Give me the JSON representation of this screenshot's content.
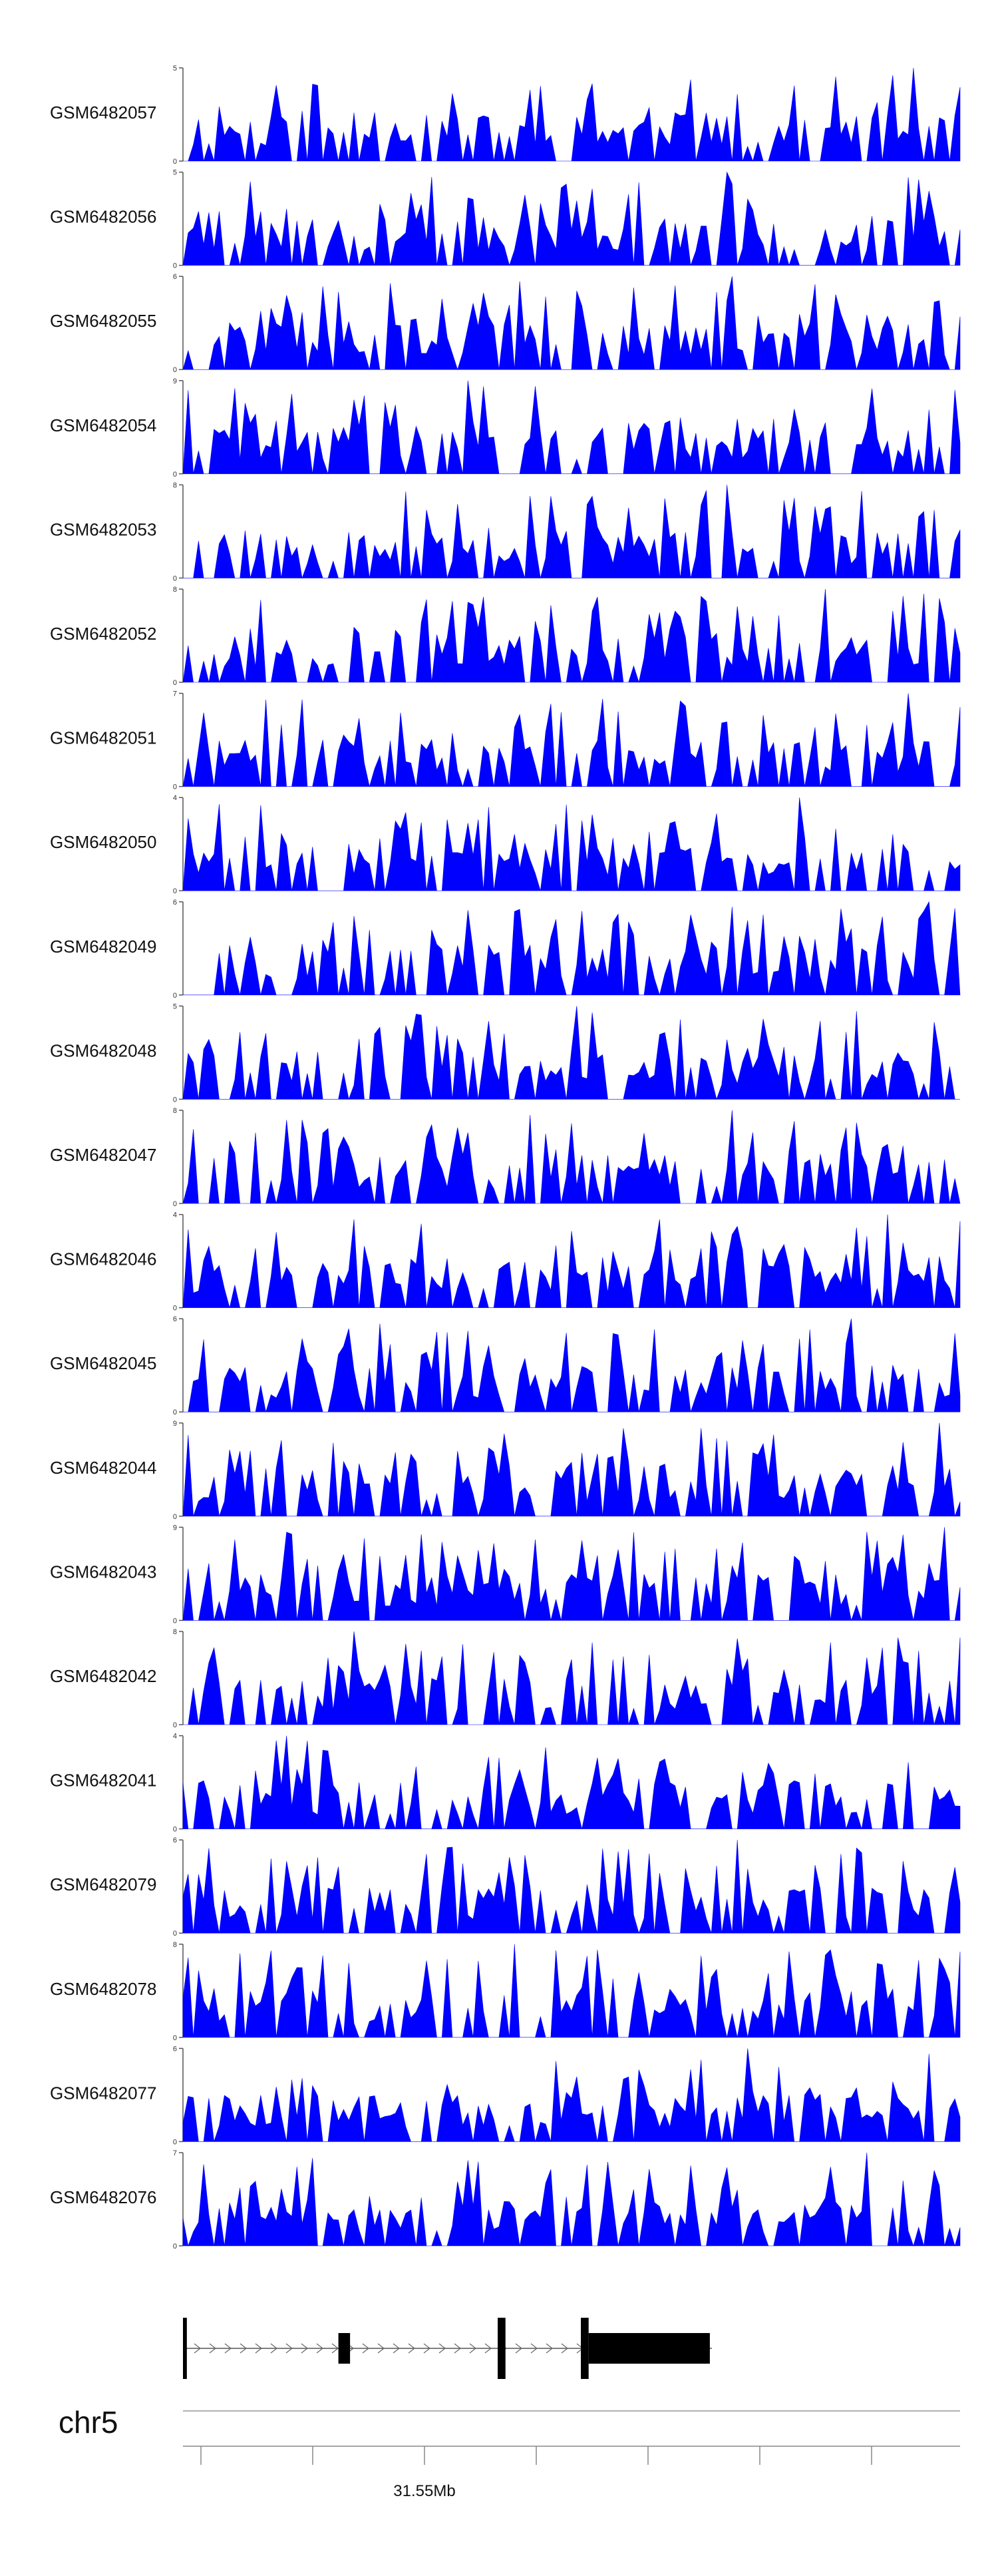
{
  "chart_data": {
    "type": "area",
    "tracks": [
      {
        "name": "GSM6482057",
        "ymax": 5,
        "seed": 11
      },
      {
        "name": "GSM6482056",
        "ymax": 5,
        "seed": 23
      },
      {
        "name": "GSM6482055",
        "ymax": 6,
        "seed": 37
      },
      {
        "name": "GSM6482054",
        "ymax": 9,
        "seed": 41
      },
      {
        "name": "GSM6482053",
        "ymax": 8,
        "seed": 53
      },
      {
        "name": "GSM6482052",
        "ymax": 8,
        "seed": 67
      },
      {
        "name": "GSM6482051",
        "ymax": 7,
        "seed": 71
      },
      {
        "name": "GSM6482050",
        "ymax": 4,
        "seed": 83
      },
      {
        "name": "GSM6482049",
        "ymax": 6,
        "seed": 97
      },
      {
        "name": "GSM6482048",
        "ymax": 5,
        "seed": 101
      },
      {
        "name": "GSM6482047",
        "ymax": 8,
        "seed": 113
      },
      {
        "name": "GSM6482046",
        "ymax": 4,
        "seed": 127
      },
      {
        "name": "GSM6482045",
        "ymax": 6,
        "seed": 131
      },
      {
        "name": "GSM6482044",
        "ymax": 9,
        "seed": 149
      },
      {
        "name": "GSM6482043",
        "ymax": 9,
        "seed": 151
      },
      {
        "name": "GSM6482042",
        "ymax": 8,
        "seed": 163
      },
      {
        "name": "GSM6482041",
        "ymax": 4,
        "seed": 173
      },
      {
        "name": "GSM6482079",
        "ymax": 6,
        "seed": 181
      },
      {
        "name": "GSM6482078",
        "ymax": 8,
        "seed": 193
      },
      {
        "name": "GSM6482077",
        "ymax": 6,
        "seed": 197
      },
      {
        "name": "GSM6482076",
        "ymax": 7,
        "seed": 211
      }
    ],
    "ymin": 0,
    "chromosome": "chr5",
    "position_label": "31.55Mb",
    "gene_exons": [
      [
        0.0,
        0.005
      ],
      [
        0.2,
        0.215
      ],
      [
        0.405,
        0.415
      ],
      [
        0.512,
        0.522
      ],
      [
        0.522,
        0.678
      ]
    ],
    "color": "#0000ff"
  }
}
